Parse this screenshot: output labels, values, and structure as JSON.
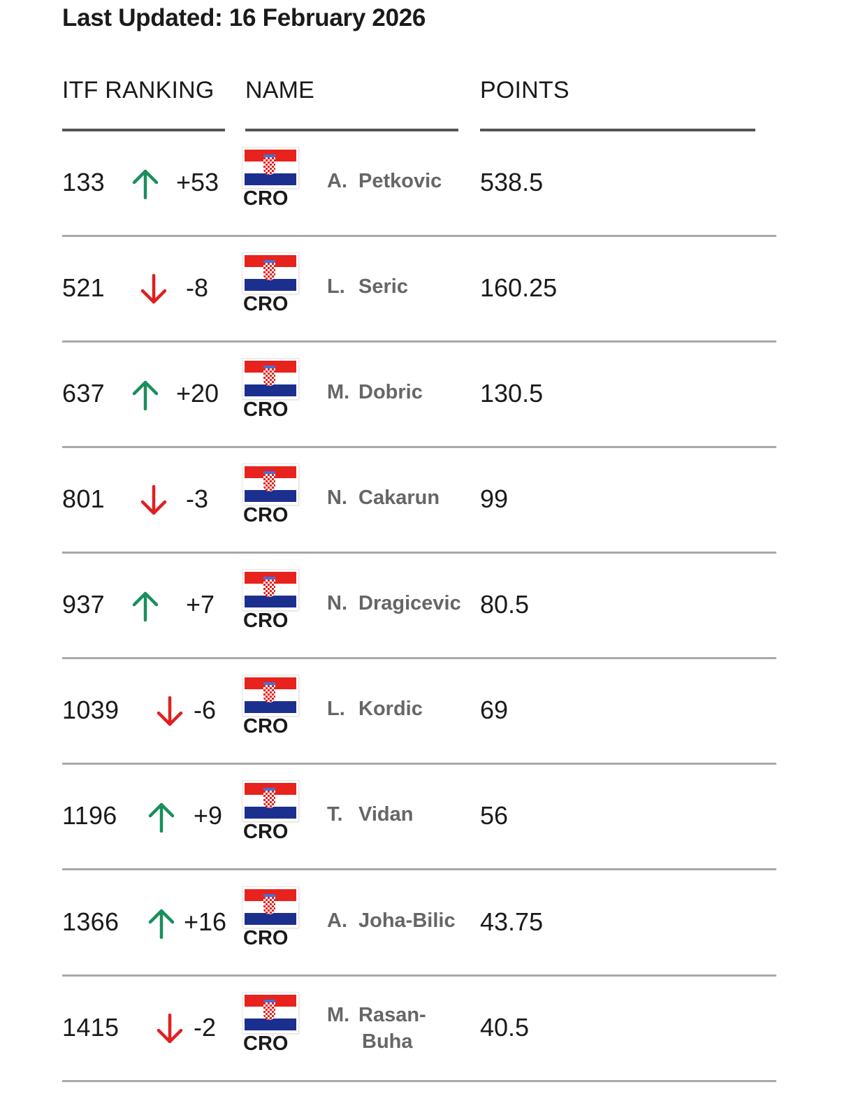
{
  "header": {
    "last_updated": "Last Updated: 16 February 2026"
  },
  "columns": {
    "rank": "ITF RANKING",
    "name": "NAME",
    "points": "POINTS"
  },
  "colors": {
    "up": "#1a8f5c",
    "down": "#e02020"
  },
  "rows": [
    {
      "rank": "133",
      "direction": "up",
      "change": "+53",
      "country": "CRO",
      "initial": "A.",
      "surname": "Petkovic",
      "points": "538.5"
    },
    {
      "rank": "521",
      "direction": "down",
      "change": "-8",
      "country": "CRO",
      "initial": "L.",
      "surname": "Seric",
      "points": "160.25"
    },
    {
      "rank": "637",
      "direction": "up",
      "change": "+20",
      "country": "CRO",
      "initial": "M.",
      "surname": "Dobric",
      "points": "130.5"
    },
    {
      "rank": "801",
      "direction": "down",
      "change": "-3",
      "country": "CRO",
      "initial": "N.",
      "surname": "Cakarun",
      "points": "99"
    },
    {
      "rank": "937",
      "direction": "up",
      "change": "+7",
      "country": "CRO",
      "initial": "N.",
      "surname": "Dragicevic",
      "points": "80.5"
    },
    {
      "rank": "1039",
      "direction": "down",
      "change": "-6",
      "country": "CRO",
      "initial": "L.",
      "surname": "Kordic",
      "points": "69"
    },
    {
      "rank": "1196",
      "direction": "up",
      "change": "+9",
      "country": "CRO",
      "initial": "T.",
      "surname": "Vidan",
      "points": "56"
    },
    {
      "rank": "1366",
      "direction": "up",
      "change": "+16",
      "country": "CRO",
      "initial": "A.",
      "surname": "Joha-Bilic",
      "points": "43.75"
    },
    {
      "rank": "1415",
      "direction": "down",
      "change": "-2",
      "country": "CRO",
      "initial": "M.",
      "surname": "Rasan-",
      "surname2": "Buha",
      "points": "40.5"
    }
  ]
}
